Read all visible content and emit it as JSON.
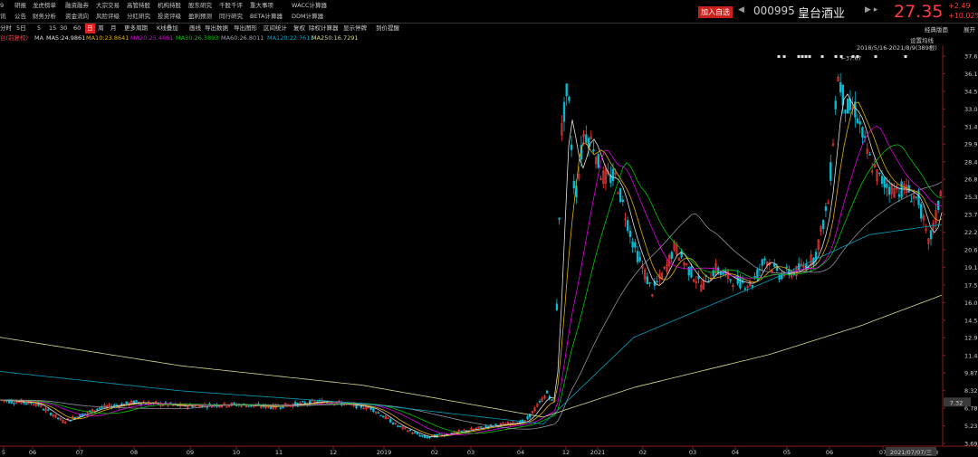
{
  "menu_row1": [
    "9",
    "研报",
    "龙虎榜单",
    "融资融券",
    "大宗交易",
    "高管持股",
    "机构持股",
    "股东研究",
    "千股千评",
    "重大事项",
    "WACC计算器"
  ],
  "menu_row2": [
    "讯",
    "公告",
    "财务分析",
    "资金流向",
    "风险评级",
    "分红研究",
    "投资评级",
    "盈利预测",
    "同行研究",
    "BETA计算器",
    "DDM计算器"
  ],
  "toolbar": [
    "分时",
    "5日",
    "5",
    "15",
    "30",
    "60",
    "日",
    "周",
    "月",
    "更多周期",
    "K线叠加",
    "画线",
    "导出数据",
    "导出图形",
    "区间统计",
    "复权",
    "除权计算器",
    "显示停牌",
    "到价提醒"
  ],
  "active_period": "日",
  "ma_bar": {
    "prefix": "台(前复权)",
    "ma": "MA",
    "ma5": "MA5:24.9861",
    "ma10": "MA10:23.8641",
    "ma20": "MA20:25.4661",
    "ma30": "MA30:26.3893",
    "ma60": "MA60:26.8011",
    "ma120": "MA120:22.7611",
    "ma250": "MA250:16.7291"
  },
  "header": {
    "add_button": "加入自选",
    "code": "000995",
    "name": "皇台酒业",
    "price": "27.35",
    "change": "+2.49",
    "change_pct": "+10.02%"
  },
  "right_panel": {
    "label": "经典版面",
    "expand": "展开",
    "settings": "设置均线",
    "range": "2018/5/16-2021/8/9(389根)"
  },
  "colors": {
    "up": "#ff3b3b",
    "down": "#00c0d8",
    "ma5": "#e0e0e0",
    "ma10": "#e0b000",
    "ma20": "#e000e0",
    "ma30": "#00c800",
    "ma60": "#9090a0",
    "ma120": "#00a0c0",
    "ma250": "#d8d890"
  },
  "chart_data": {
    "type": "candlestick",
    "y_ticks": [
      "37.67",
      "36.13",
      "34.58",
      "33.04",
      "31.49",
      "29.95",
      "28.40",
      "26.86",
      "25.31",
      "23.77",
      "22.22",
      "20.68",
      "19.14",
      "17.59",
      "16.05",
      "14.50",
      "12.96",
      "11.41",
      "9.87",
      "8.32",
      "6.78",
      "5.23",
      "3.69"
    ],
    "ylim": [
      3.69,
      37.67
    ],
    "x_ticks": [
      "5",
      "06",
      "07",
      "08",
      "09",
      "10",
      "11",
      "12",
      "2019",
      "02",
      "03",
      "04",
      "12",
      "2021",
      "02",
      "03",
      "04",
      "05",
      "06",
      "07",
      "08"
    ],
    "last_price_tag": "7.32",
    "high_marker": "37.67",
    "date_label": "2021/07/07/三"
  }
}
